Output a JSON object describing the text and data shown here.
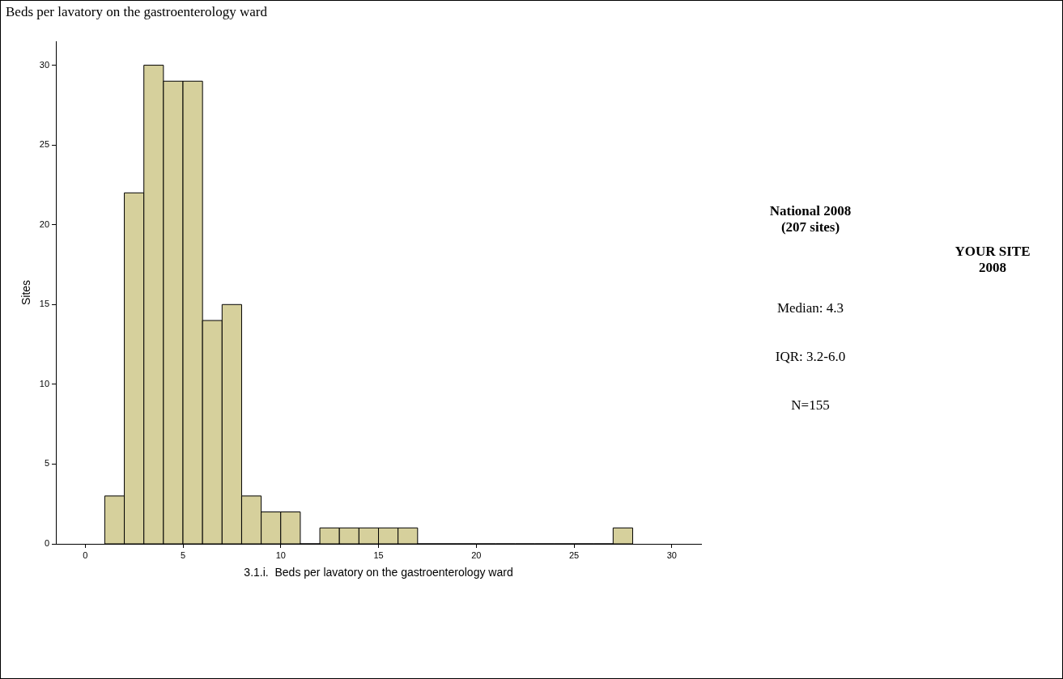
{
  "chart_data": {
    "type": "histogram",
    "title": "Beds per lavatory on the gastroenterology ward",
    "xlabel": "3.1.i.  Beds per lavatory on the gastroenterology ward",
    "ylabel": "Sites",
    "bins": [
      1,
      2,
      3,
      4,
      5,
      6,
      7,
      8,
      9,
      10,
      11,
      12,
      13,
      14,
      15,
      16,
      17,
      18,
      19,
      20,
      21,
      22,
      23,
      24,
      25,
      26,
      27,
      28
    ],
    "values": [
      3,
      22,
      30,
      29,
      29,
      14,
      15,
      3,
      2,
      2,
      0,
      1,
      1,
      1,
      1,
      1,
      0,
      0,
      0,
      0,
      0,
      0,
      0,
      0,
      0,
      0,
      1
    ],
    "color": "#d6d09c",
    "xlim": [
      -1.5,
      31.5
    ],
    "xticks": [
      0,
      5,
      10,
      15,
      20,
      25,
      30
    ],
    "ylim": [
      0,
      31.5
    ],
    "yticks": [
      0,
      5,
      10,
      15,
      20,
      25,
      30
    ],
    "grid": false,
    "legend": false,
    "annotations": [
      "National 2008\n(207 sites)",
      "YOUR SITE\n2008",
      "Median: 4.3",
      "IQR: 3.2-6.0",
      "N=155"
    ]
  }
}
